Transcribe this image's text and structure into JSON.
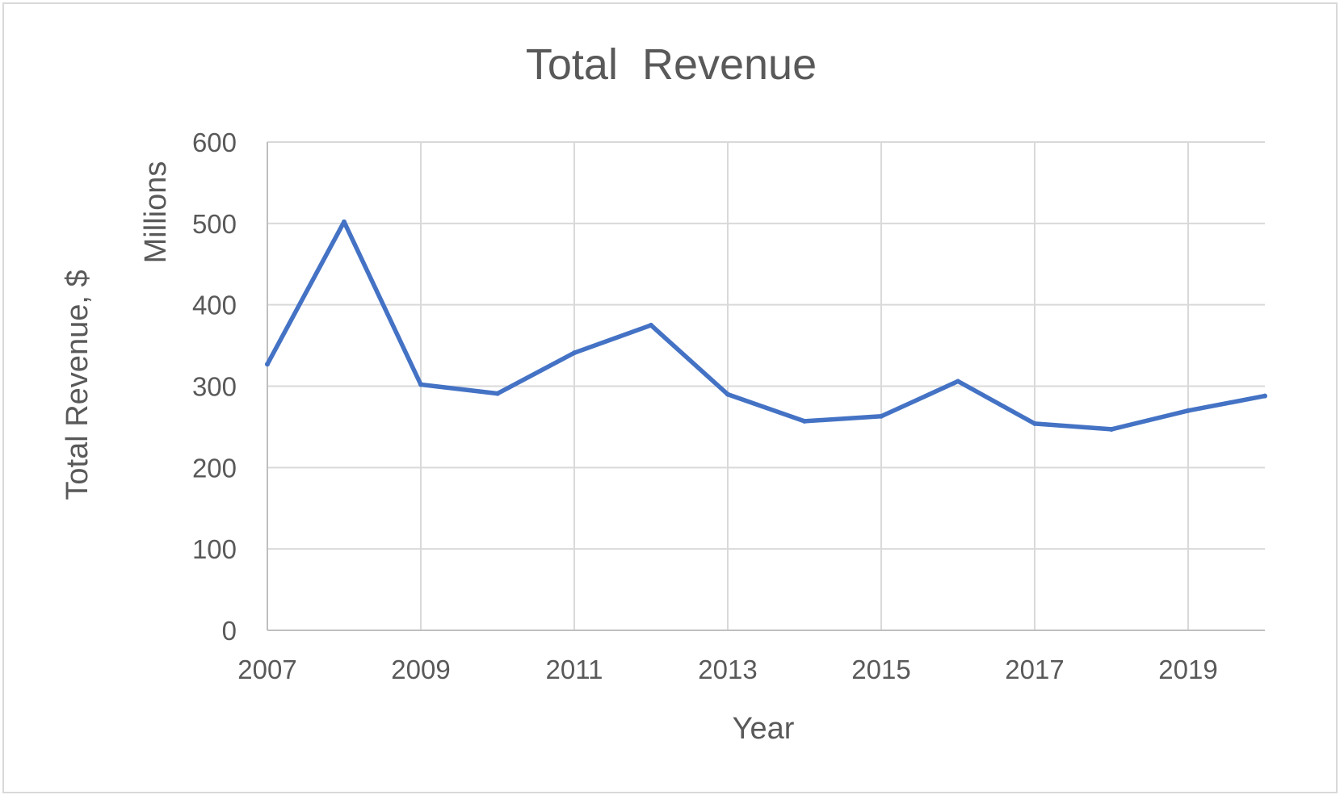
{
  "chart_data": {
    "type": "line",
    "title": "Total  Revenue",
    "xlabel": "Year",
    "ylabel": "Total Revenue, $",
    "y_unit_label": "Millions",
    "x": [
      2007,
      2008,
      2009,
      2010,
      2011,
      2012,
      2013,
      2014,
      2015,
      2016,
      2017,
      2018,
      2019,
      2020
    ],
    "series": [
      {
        "values": [
          327,
          502,
          302,
          291,
          341,
          375,
          290,
          257,
          263,
          306,
          254,
          247,
          270,
          288
        ],
        "color": "#4472c4"
      }
    ],
    "xlim": [
      2007,
      2020
    ],
    "ylim": [
      0,
      600
    ],
    "x_ticks": [
      "2007",
      "2009",
      "2011",
      "2013",
      "2015",
      "2017",
      "2019"
    ],
    "y_ticks": [
      "0",
      "100",
      "200",
      "300",
      "400",
      "500",
      "600"
    ],
    "grid": true,
    "legend": "none"
  }
}
